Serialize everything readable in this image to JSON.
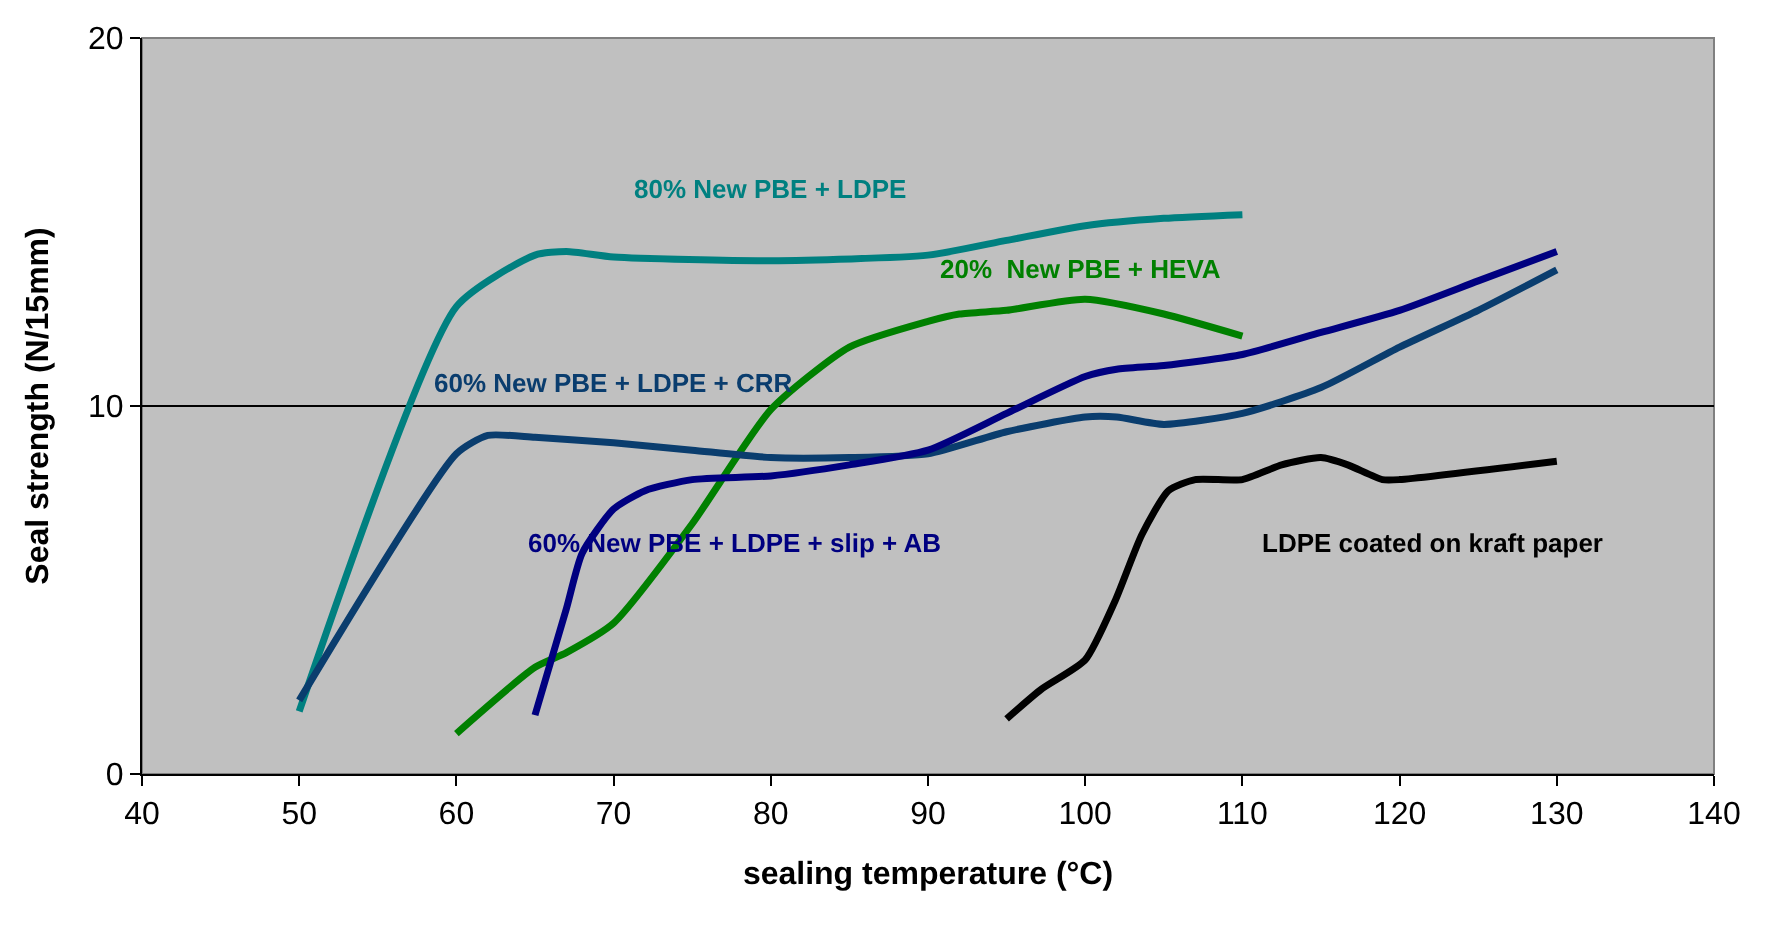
{
  "chart_data": {
    "type": "line",
    "xlabel": "sealing temperature (°C)",
    "ylabel": "Seal strength (N/15mm)",
    "xlim": [
      40,
      140
    ],
    "xticks": [
      40,
      50,
      60,
      70,
      80,
      90,
      100,
      110,
      120,
      130,
      140
    ],
    "ylim": [
      0,
      20
    ],
    "yticks": [
      0,
      10,
      20
    ],
    "grid": "y",
    "series": [
      {
        "name": "80% New PBE + LDPE",
        "color": "#008080",
        "x": [
          50,
          60,
          65,
          67,
          70,
          80,
          90,
          95,
          100,
          105,
          110
        ],
        "values": [
          1.7,
          12.7,
          14.1,
          14.2,
          14.05,
          13.95,
          14.1,
          14.5,
          14.9,
          15.1,
          15.2
        ]
      },
      {
        "name": "20%  New PBE + HEVA",
        "color": "#008000",
        "x": [
          60,
          65,
          67,
          70,
          75,
          80,
          85,
          90,
          92,
          95,
          100,
          105,
          110
        ],
        "values": [
          1.1,
          2.9,
          3.3,
          4.1,
          6.8,
          9.9,
          11.6,
          12.3,
          12.5,
          12.6,
          12.9,
          12.5,
          11.9
        ]
      },
      {
        "name": "60% New PBE + LDPE + CRR",
        "color": "#0a3d6e",
        "x": [
          50,
          60,
          62,
          65,
          70,
          75,
          80,
          85,
          90,
          95,
          100,
          102,
          105,
          110,
          115,
          120,
          125,
          130
        ],
        "values": [
          2.0,
          8.7,
          9.2,
          9.15,
          9.0,
          8.8,
          8.6,
          8.6,
          8.7,
          9.3,
          9.7,
          9.7,
          9.5,
          9.8,
          10.5,
          11.6,
          12.6,
          13.7
        ]
      },
      {
        "name": "60% New PBE + LDPE + slip + AB",
        "color": "#000080",
        "x": [
          65,
          67,
          68,
          70,
          72,
          75,
          80,
          85,
          90,
          95,
          100,
          102,
          105,
          110,
          115,
          120,
          125,
          130
        ],
        "values": [
          1.6,
          4.5,
          6.0,
          7.2,
          7.7,
          8.0,
          8.1,
          8.4,
          8.8,
          9.8,
          10.8,
          11.0,
          11.1,
          11.4,
          12.0,
          12.6,
          13.4,
          14.2
        ]
      },
      {
        "name": "LDPE coated on kraft paper",
        "color": "#000000",
        "x": [
          95,
          97.2,
          100,
          101.9,
          103.6,
          105.3,
          107,
          110,
          112.5,
          115,
          116.7,
          118.9,
          120,
          130
        ],
        "values": [
          1.5,
          2.3,
          3.1,
          4.7,
          6.5,
          7.7,
          8.0,
          8.0,
          8.4,
          8.6,
          8.4,
          8.0,
          8.0,
          8.5
        ]
      }
    ]
  }
}
